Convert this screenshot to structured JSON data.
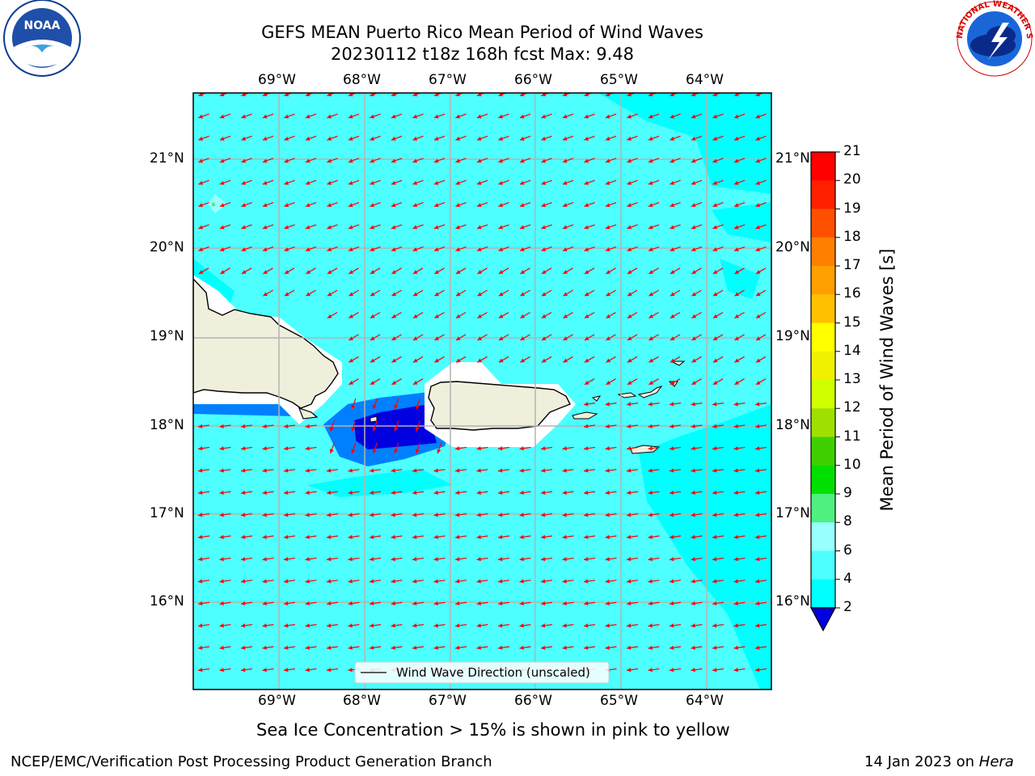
{
  "header": {
    "title_line1": "GEFS MEAN Puerto Rico Mean Period of Wind Waves",
    "title_line2": "20230112 t18z 168h fcst   Max: 9.48"
  },
  "logos": {
    "noaa": {
      "name": "noaa-logo",
      "text": "NOAA"
    },
    "nws": {
      "name": "nws-logo",
      "text": "NATIONAL WEATHER SERVICE"
    }
  },
  "map": {
    "lon_labels": [
      "69°W",
      "68°W",
      "67°W",
      "66°W",
      "65°W",
      "64°W"
    ],
    "lat_labels": [
      "21°N",
      "20°N",
      "19°N",
      "18°N",
      "17°N",
      "16°N"
    ],
    "legend_label": "Wind Wave Direction (unscaled)",
    "arrow_color": "#ff0000",
    "ocean_color": "#4dffff",
    "land_color": "#efefdc"
  },
  "colorbar": {
    "label": "Mean Period of Wind Waves [s]",
    "ticks": [
      "2",
      "4",
      "6",
      "8",
      "9",
      "10",
      "11",
      "12",
      "13",
      "14",
      "15",
      "16",
      "17",
      "18",
      "19",
      "20",
      "21"
    ],
    "colors": [
      "#0000e0",
      "#0080ff",
      "#00ffff",
      "#4dffff",
      "#99ffff",
      "#50f080",
      "#00e000",
      "#40d000",
      "#a0e000",
      "#d0ff00",
      "#f0f000",
      "#ffff00",
      "#ffc000",
      "#ffa000",
      "#ff8000",
      "#ff5000",
      "#ff2000",
      "#ff0000"
    ]
  },
  "footer": {
    "note": "Sea Ice Concentration > 15% is shown in pink to yellow",
    "org": "NCEP/EMC/Verification Post Processing Product Generation Branch",
    "date": "14 Jan 2023 on",
    "machine": "Hera"
  }
}
